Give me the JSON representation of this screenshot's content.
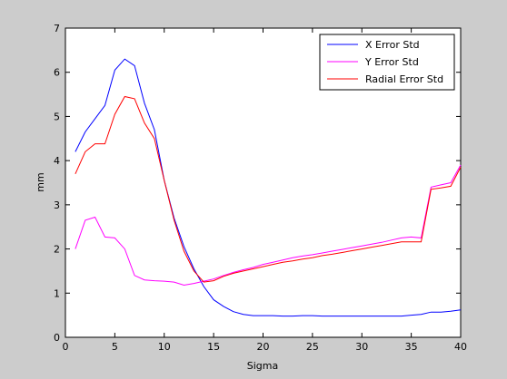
{
  "chart_data": {
    "type": "line",
    "title": "",
    "xlabel": "Sigma",
    "ylabel": "mm",
    "xlim": [
      0,
      40
    ],
    "ylim": [
      0,
      7
    ],
    "xticks": [
      0,
      5,
      10,
      15,
      20,
      25,
      30,
      35,
      40
    ],
    "yticks": [
      0,
      1,
      2,
      3,
      4,
      5,
      6,
      7
    ],
    "grid": false,
    "legend_position": "top-right",
    "x": [
      1,
      2,
      3,
      4,
      5,
      6,
      7,
      8,
      9,
      10,
      11,
      12,
      13,
      14,
      15,
      16,
      17,
      18,
      19,
      20,
      21,
      22,
      23,
      24,
      25,
      26,
      27,
      28,
      29,
      30,
      31,
      32,
      33,
      34,
      35,
      36,
      37,
      38,
      39,
      40
    ],
    "series": [
      {
        "name": "X Error Std",
        "color": "#0000ff",
        "values": [
          4.2,
          4.65,
          4.95,
          5.25,
          6.05,
          6.3,
          6.15,
          5.3,
          4.7,
          3.55,
          2.7,
          2.05,
          1.55,
          1.15,
          0.85,
          0.7,
          0.58,
          0.52,
          0.49,
          0.49,
          0.49,
          0.48,
          0.48,
          0.49,
          0.49,
          0.48,
          0.48,
          0.48,
          0.48,
          0.48,
          0.48,
          0.48,
          0.48,
          0.48,
          0.5,
          0.52,
          0.57,
          0.57,
          0.59,
          0.62
        ]
      },
      {
        "name": "Y Error Std",
        "color": "#ff00ff",
        "values": [
          2.0,
          2.65,
          2.72,
          2.27,
          2.25,
          2.0,
          1.4,
          1.3,
          1.28,
          1.27,
          1.25,
          1.18,
          1.22,
          1.27,
          1.32,
          1.4,
          1.47,
          1.53,
          1.58,
          1.65,
          1.7,
          1.75,
          1.8,
          1.84,
          1.87,
          1.91,
          1.95,
          1.99,
          2.03,
          2.07,
          2.11,
          2.15,
          2.2,
          2.25,
          2.27,
          2.25,
          3.4,
          3.45,
          3.5,
          3.9
        ]
      },
      {
        "name": "Radial Error Std",
        "color": "#ff0000",
        "values": [
          3.7,
          4.2,
          4.38,
          4.38,
          5.05,
          5.45,
          5.4,
          4.85,
          4.5,
          3.55,
          2.65,
          1.95,
          1.5,
          1.25,
          1.28,
          1.38,
          1.45,
          1.5,
          1.55,
          1.6,
          1.65,
          1.7,
          1.73,
          1.77,
          1.8,
          1.85,
          1.88,
          1.92,
          1.96,
          2.0,
          2.04,
          2.08,
          2.12,
          2.16,
          2.16,
          2.16,
          3.35,
          3.38,
          3.42,
          3.85
        ]
      }
    ]
  }
}
